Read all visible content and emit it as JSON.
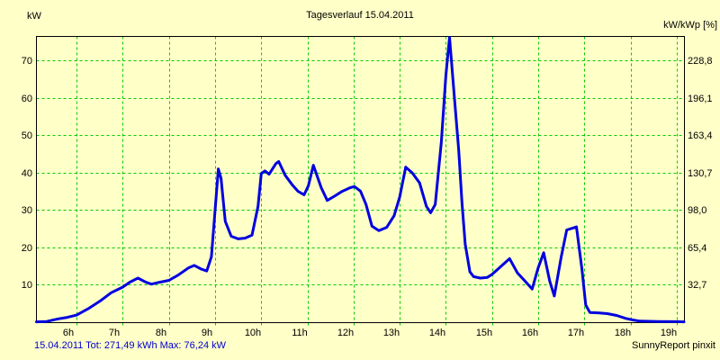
{
  "header": {
    "left_unit": "kW",
    "title": "Tagesverlauf 15.04.2011",
    "right_unit": "kW/kWp [%]"
  },
  "footer": {
    "status": "15.04.2011 Tot: 271,49 kWh Max: 76,24 kW",
    "credit": "SunnyReport pinxit"
  },
  "colors": {
    "background": "#FFFFC8",
    "grid": "#00CC00",
    "curve": "#0000E0",
    "axis": "#000000",
    "status_text": "#0000D0"
  },
  "chart_data": {
    "type": "line",
    "title": "Tagesverlauf 15.04.2011",
    "ylabel_left": "kW",
    "ylabel_right": "kW/kWp [%]",
    "grid": "dashed",
    "legend": "none",
    "x_hours_range": [
      5.12,
      19.16
    ],
    "ylim_left": [
      0,
      76.6
    ],
    "left_ticks": [
      10,
      20,
      30,
      40,
      50,
      60,
      70
    ],
    "right_tick_labels": [
      "32,7",
      "65,4",
      "98,0",
      "130,7",
      "163,4",
      "196,1",
      "228,8"
    ],
    "hour_ticks": [
      {
        "hour": 6,
        "label": "6h"
      },
      {
        "hour": 7,
        "label": "7h"
      },
      {
        "hour": 8,
        "label": "8h"
      },
      {
        "hour": 9,
        "label": "9h"
      },
      {
        "hour": 10,
        "label": "10h"
      },
      {
        "hour": 11,
        "label": "11h"
      },
      {
        "hour": 12,
        "label": "12h"
      },
      {
        "hour": 13,
        "label": "13h"
      },
      {
        "hour": 14,
        "label": "14h"
      },
      {
        "hour": 15,
        "label": "15h"
      },
      {
        "hour": 16,
        "label": "16h"
      },
      {
        "hour": 17,
        "label": "17h"
      },
      {
        "hour": 18,
        "label": "18h"
      },
      {
        "hour": 19,
        "label": "19h"
      }
    ],
    "total_kwh": "271,49",
    "max_kw": "76,24",
    "series": [
      {
        "name": "power_kw",
        "points": [
          [
            5.13,
            0.1
          ],
          [
            5.35,
            0.2
          ],
          [
            5.6,
            0.9
          ],
          [
            5.8,
            1.3
          ],
          [
            6.0,
            1.9
          ],
          [
            6.25,
            3.6
          ],
          [
            6.5,
            5.6
          ],
          [
            6.75,
            7.9
          ],
          [
            7.0,
            9.4
          ],
          [
            7.15,
            10.7
          ],
          [
            7.33,
            11.8
          ],
          [
            7.5,
            10.7
          ],
          [
            7.62,
            10.2
          ],
          [
            7.8,
            10.7
          ],
          [
            8.0,
            11.2
          ],
          [
            8.2,
            12.6
          ],
          [
            8.42,
            14.5
          ],
          [
            8.55,
            15.2
          ],
          [
            8.7,
            14.2
          ],
          [
            8.82,
            13.7
          ],
          [
            8.92,
            17.5
          ],
          [
            9.0,
            30.0
          ],
          [
            9.07,
            41.0
          ],
          [
            9.13,
            38.5
          ],
          [
            9.22,
            27.0
          ],
          [
            9.35,
            23.0
          ],
          [
            9.5,
            22.3
          ],
          [
            9.65,
            22.5
          ],
          [
            9.8,
            23.3
          ],
          [
            9.93,
            31.0
          ],
          [
            10.0,
            39.8
          ],
          [
            10.08,
            40.5
          ],
          [
            10.17,
            39.6
          ],
          [
            10.32,
            42.5
          ],
          [
            10.38,
            43.0
          ],
          [
            10.52,
            39.3
          ],
          [
            10.67,
            36.8
          ],
          [
            10.8,
            35.0
          ],
          [
            10.93,
            34.1
          ],
          [
            11.02,
            36.5
          ],
          [
            11.13,
            42.0
          ],
          [
            11.3,
            36.0
          ],
          [
            11.43,
            32.6
          ],
          [
            11.57,
            33.6
          ],
          [
            11.75,
            35.0
          ],
          [
            11.93,
            36.0
          ],
          [
            12.02,
            36.3
          ],
          [
            12.15,
            35.1
          ],
          [
            12.27,
            31.5
          ],
          [
            12.4,
            25.7
          ],
          [
            12.55,
            24.5
          ],
          [
            12.72,
            25.4
          ],
          [
            12.88,
            28.5
          ],
          [
            13.0,
            33.5
          ],
          [
            13.13,
            41.5
          ],
          [
            13.27,
            40.0
          ],
          [
            13.43,
            37.3
          ],
          [
            13.58,
            31.0
          ],
          [
            13.67,
            29.3
          ],
          [
            13.77,
            31.5
          ],
          [
            13.9,
            48.0
          ],
          [
            14.0,
            66.0
          ],
          [
            14.08,
            76.24
          ],
          [
            14.18,
            61.0
          ],
          [
            14.28,
            46.0
          ],
          [
            14.35,
            32.0
          ],
          [
            14.42,
            20.9
          ],
          [
            14.52,
            13.5
          ],
          [
            14.6,
            12.2
          ],
          [
            14.75,
            11.8
          ],
          [
            14.9,
            12.0
          ],
          [
            15.0,
            12.8
          ],
          [
            15.2,
            15.0
          ],
          [
            15.38,
            17.0
          ],
          [
            15.55,
            13.2
          ],
          [
            15.7,
            11.2
          ],
          [
            15.87,
            8.9
          ],
          [
            16.0,
            14.5
          ],
          [
            16.12,
            18.6
          ],
          [
            16.25,
            11.0
          ],
          [
            16.35,
            7.0
          ],
          [
            16.5,
            17.5
          ],
          [
            16.62,
            24.7
          ],
          [
            16.75,
            25.2
          ],
          [
            16.83,
            25.5
          ],
          [
            16.95,
            14.0
          ],
          [
            17.03,
            4.6
          ],
          [
            17.12,
            2.6
          ],
          [
            17.3,
            2.5
          ],
          [
            17.5,
            2.3
          ],
          [
            17.7,
            1.8
          ],
          [
            17.9,
            1.0
          ],
          [
            18.05,
            0.6
          ],
          [
            18.2,
            0.3
          ],
          [
            18.6,
            0.2
          ],
          [
            19.0,
            0.15
          ],
          [
            19.16,
            0.1
          ]
        ]
      }
    ]
  }
}
